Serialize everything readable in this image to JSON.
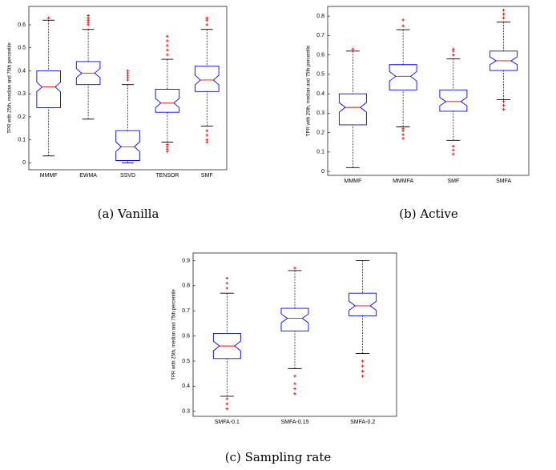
{
  "chart_data": [
    {
      "type": "box",
      "caption": "(a)  Vanilla",
      "ylabel": "TPR with 25th, median and 75th percentile",
      "categories": [
        "MMMF",
        "EWMA",
        "SSVD",
        "TENSOR",
        "SMF"
      ],
      "boxes": [
        {
          "low": 0.03,
          "q1": 0.24,
          "median": 0.33,
          "q3": 0.4,
          "high": 0.62,
          "outliers": [
            0.63
          ]
        },
        {
          "low": 0.19,
          "q1": 0.34,
          "median": 0.39,
          "q3": 0.44,
          "high": 0.58,
          "outliers": [
            0.6,
            0.61,
            0.62,
            0.63,
            0.64
          ]
        },
        {
          "low": 0.0,
          "q1": 0.01,
          "median": 0.07,
          "q3": 0.14,
          "high": 0.34,
          "outliers": [
            0.36,
            0.37,
            0.38,
            0.39,
            0.4
          ]
        },
        {
          "low": 0.09,
          "q1": 0.22,
          "median": 0.26,
          "q3": 0.32,
          "high": 0.45,
          "outliers": [
            0.05,
            0.06,
            0.07,
            0.08,
            0.47,
            0.49,
            0.51,
            0.53,
            0.55
          ]
        },
        {
          "low": 0.16,
          "q1": 0.31,
          "median": 0.36,
          "q3": 0.42,
          "high": 0.58,
          "outliers": [
            0.09,
            0.1,
            0.12,
            0.14,
            0.6,
            0.62,
            0.63
          ]
        }
      ],
      "ylim": [
        -0.03,
        0.68
      ],
      "yticks": [
        0,
        0.1,
        0.2,
        0.3,
        0.4,
        0.5,
        0.6
      ],
      "color": "#0000ff",
      "median_color": "#ff0000",
      "outlier_color": "#ff0000",
      "whisker_color": "#000000"
    },
    {
      "type": "box",
      "caption": "(b)  Active",
      "ylabel": "TPR with 25th, median and 75th percentile",
      "categories": [
        "MMMF",
        "MMMFA",
        "SMF",
        "SMFA"
      ],
      "boxes": [
        {
          "low": 0.02,
          "q1": 0.24,
          "median": 0.33,
          "q3": 0.4,
          "high": 0.62,
          "outliers": [
            0.63
          ]
        },
        {
          "low": 0.23,
          "q1": 0.42,
          "median": 0.49,
          "q3": 0.55,
          "high": 0.73,
          "outliers": [
            0.17,
            0.19,
            0.21,
            0.22,
            0.75,
            0.78
          ]
        },
        {
          "low": 0.16,
          "q1": 0.31,
          "median": 0.36,
          "q3": 0.42,
          "high": 0.58,
          "outliers": [
            0.09,
            0.11,
            0.13,
            0.6,
            0.62,
            0.63
          ]
        },
        {
          "low": 0.37,
          "q1": 0.52,
          "median": 0.57,
          "q3": 0.62,
          "high": 0.77,
          "outliers": [
            0.32,
            0.34,
            0.36,
            0.79,
            0.81,
            0.83
          ]
        }
      ],
      "ylim": [
        -0.02,
        0.85
      ],
      "yticks": [
        0,
        0.1,
        0.2,
        0.3,
        0.4,
        0.5,
        0.6,
        0.7,
        0.8
      ],
      "color": "#0000ff",
      "median_color": "#ff0000",
      "outlier_color": "#ff0000",
      "whisker_color": "#000000"
    },
    {
      "type": "box",
      "caption": "(c)  Sampling rate",
      "ylabel": "TPR with 25th, median and 75th percentile",
      "categories": [
        "SMFA-0.1",
        "SMFA-0.15",
        "SMFA-0.2"
      ],
      "boxes": [
        {
          "low": 0.36,
          "q1": 0.51,
          "median": 0.56,
          "q3": 0.61,
          "high": 0.77,
          "outliers": [
            0.31,
            0.33,
            0.35,
            0.79,
            0.81,
            0.83
          ]
        },
        {
          "low": 0.47,
          "q1": 0.62,
          "median": 0.67,
          "q3": 0.71,
          "high": 0.86,
          "outliers": [
            0.37,
            0.39,
            0.41,
            0.44,
            0.87
          ]
        },
        {
          "low": 0.53,
          "q1": 0.68,
          "median": 0.72,
          "q3": 0.77,
          "high": 0.9,
          "outliers": [
            0.44,
            0.46,
            0.48,
            0.5
          ]
        }
      ],
      "ylim": [
        0.28,
        0.93
      ],
      "yticks": [
        0.3,
        0.4,
        0.5,
        0.6,
        0.7,
        0.8,
        0.9
      ],
      "color": "#0000ff",
      "median_color": "#ff0000",
      "outlier_color": "#ff0000",
      "whisker_color": "#000000"
    }
  ]
}
